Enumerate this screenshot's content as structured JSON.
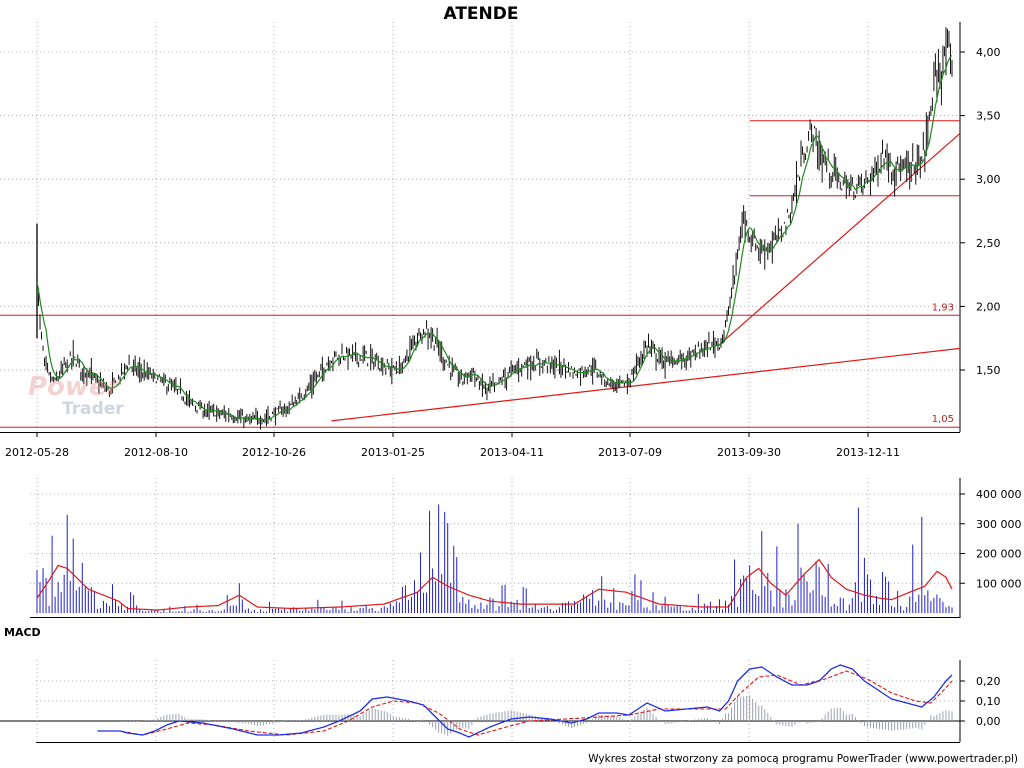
{
  "chart_data": [
    {
      "type": "candlestick",
      "title": "ATENDE",
      "x_tick_labels": [
        "2012-05-28",
        "2012-08-10",
        "2012-10-26",
        "2013-01-25",
        "2013-04-11",
        "2013-07-09",
        "2013-09-30",
        "2013-12-11"
      ],
      "y_tick_labels": [
        "4,00",
        "3,50",
        "3,00",
        "2,50",
        "2,00",
        "1,50"
      ],
      "y_ticks": [
        4.0,
        3.5,
        3.0,
        2.5,
        2.0,
        1.5
      ],
      "ylim": [
        1.0,
        4.1
      ],
      "grid": true,
      "level_labels": [
        "1,93",
        "1,05"
      ],
      "levels": [
        1.93,
        1.05,
        3.46,
        2.87
      ],
      "price_points": [
        [
          0,
          2.25
        ],
        [
          2,
          1.85
        ],
        [
          5,
          1.55
        ],
        [
          8,
          1.45
        ],
        [
          12,
          1.4
        ],
        [
          18,
          1.52
        ],
        [
          24,
          1.6
        ],
        [
          30,
          1.5
        ],
        [
          36,
          1.46
        ],
        [
          42,
          1.38
        ],
        [
          48,
          1.33
        ],
        [
          55,
          1.45
        ],
        [
          60,
          1.55
        ],
        [
          66,
          1.5
        ],
        [
          72,
          1.47
        ],
        [
          78,
          1.44
        ],
        [
          84,
          1.4
        ],
        [
          90,
          1.36
        ],
        [
          96,
          1.3
        ],
        [
          102,
          1.24
        ],
        [
          110,
          1.18
        ],
        [
          120,
          1.16
        ],
        [
          130,
          1.14
        ],
        [
          140,
          1.1
        ],
        [
          150,
          1.12
        ],
        [
          158,
          1.16
        ],
        [
          166,
          1.2
        ],
        [
          174,
          1.28
        ],
        [
          180,
          1.36
        ],
        [
          186,
          1.45
        ],
        [
          190,
          1.52
        ],
        [
          196,
          1.6
        ],
        [
          206,
          1.62
        ],
        [
          216,
          1.6
        ],
        [
          226,
          1.56
        ],
        [
          236,
          1.5
        ],
        [
          242,
          1.52
        ],
        [
          248,
          1.68
        ],
        [
          254,
          1.8
        ],
        [
          258,
          1.82
        ],
        [
          264,
          1.72
        ],
        [
          270,
          1.58
        ],
        [
          276,
          1.48
        ],
        [
          282,
          1.42
        ],
        [
          288,
          1.5
        ],
        [
          292,
          1.4
        ],
        [
          298,
          1.35
        ],
        [
          304,
          1.38
        ],
        [
          310,
          1.45
        ],
        [
          316,
          1.5
        ],
        [
          324,
          1.55
        ],
        [
          334,
          1.56
        ],
        [
          344,
          1.53
        ],
        [
          350,
          1.52
        ],
        [
          356,
          1.48
        ],
        [
          362,
          1.5
        ],
        [
          368,
          1.52
        ],
        [
          376,
          1.42
        ],
        [
          384,
          1.38
        ],
        [
          392,
          1.4
        ],
        [
          398,
          1.55
        ],
        [
          404,
          1.7
        ],
        [
          410,
          1.62
        ],
        [
          416,
          1.56
        ],
        [
          424,
          1.58
        ],
        [
          432,
          1.6
        ],
        [
          440,
          1.66
        ],
        [
          448,
          1.7
        ],
        [
          452,
          1.72
        ],
        [
          456,
          1.82
        ],
        [
          460,
          2.1
        ],
        [
          464,
          2.4
        ],
        [
          468,
          2.7
        ],
        [
          474,
          2.52
        ],
        [
          480,
          2.44
        ],
        [
          486,
          2.48
        ],
        [
          492,
          2.56
        ],
        [
          498,
          2.7
        ],
        [
          502,
          2.9
        ],
        [
          506,
          3.1
        ],
        [
          510,
          3.3
        ],
        [
          514,
          3.38
        ],
        [
          518,
          3.2
        ],
        [
          524,
          3.1
        ],
        [
          532,
          2.98
        ],
        [
          540,
          2.92
        ],
        [
          548,
          2.96
        ],
        [
          556,
          3.08
        ],
        [
          560,
          3.2
        ],
        [
          566,
          3.12
        ],
        [
          574,
          3.06
        ],
        [
          580,
          3.08
        ],
        [
          586,
          3.16
        ],
        [
          590,
          3.4
        ],
        [
          594,
          3.72
        ],
        [
          598,
          3.86
        ],
        [
          602,
          3.98
        ],
        [
          606,
          3.9
        ]
      ],
      "n_sessions": 607
    },
    {
      "type": "bar",
      "series_name": "volume",
      "y_tick_labels": [
        "400 000",
        "300 000",
        "200 000",
        "100 000"
      ],
      "y_ticks": [
        400000,
        300000,
        200000,
        100000
      ],
      "ylim": [
        0,
        470000
      ],
      "volume_points": [
        [
          0,
          300000
        ],
        [
          6,
          320000
        ],
        [
          12,
          230000
        ],
        [
          18,
          370000
        ],
        [
          24,
          250000
        ],
        [
          30,
          320000
        ],
        [
          36,
          200000
        ],
        [
          42,
          120000
        ],
        [
          48,
          100000
        ],
        [
          54,
          90000
        ],
        [
          60,
          80000
        ],
        [
          70,
          30000
        ],
        [
          90,
          20000
        ],
        [
          110,
          30000
        ],
        [
          126,
          60000
        ],
        [
          134,
          100000
        ],
        [
          144,
          30000
        ],
        [
          170,
          50000
        ],
        [
          200,
          40000
        ],
        [
          232,
          60000
        ],
        [
          250,
          110000
        ],
        [
          262,
          390000
        ],
        [
          270,
          340000
        ],
        [
          280,
          150000
        ],
        [
          292,
          120000
        ],
        [
          304,
          90000
        ],
        [
          316,
          100000
        ],
        [
          330,
          70000
        ],
        [
          350,
          90000
        ],
        [
          370,
          160000
        ],
        [
          380,
          70000
        ],
        [
          392,
          150000
        ],
        [
          410,
          60000
        ],
        [
          432,
          40000
        ],
        [
          452,
          120000
        ],
        [
          462,
          180000
        ],
        [
          470,
          320000
        ],
        [
          476,
          290000
        ],
        [
          484,
          260000
        ],
        [
          494,
          200000
        ],
        [
          504,
          300000
        ],
        [
          510,
          460000
        ],
        [
          518,
          300000
        ],
        [
          526,
          120000
        ],
        [
          536,
          90000
        ],
        [
          546,
          420000
        ],
        [
          556,
          170000
        ],
        [
          566,
          90000
        ],
        [
          576,
          50000
        ],
        [
          584,
          410000
        ],
        [
          590,
          150000
        ],
        [
          598,
          120000
        ],
        [
          606,
          40000
        ]
      ],
      "ma_points": [
        [
          0,
          50000
        ],
        [
          8,
          110000
        ],
        [
          14,
          160000
        ],
        [
          20,
          150000
        ],
        [
          26,
          120000
        ],
        [
          34,
          80000
        ],
        [
          44,
          60000
        ],
        [
          54,
          40000
        ],
        [
          60,
          15000
        ],
        [
          80,
          10000
        ],
        [
          100,
          20000
        ],
        [
          120,
          25000
        ],
        [
          134,
          60000
        ],
        [
          146,
          20000
        ],
        [
          170,
          15000
        ],
        [
          200,
          20000
        ],
        [
          230,
          30000
        ],
        [
          252,
          70000
        ],
        [
          262,
          120000
        ],
        [
          272,
          90000
        ],
        [
          286,
          60000
        ],
        [
          300,
          40000
        ],
        [
          320,
          30000
        ],
        [
          340,
          30000
        ],
        [
          356,
          30000
        ],
        [
          372,
          80000
        ],
        [
          390,
          70000
        ],
        [
          412,
          30000
        ],
        [
          440,
          20000
        ],
        [
          458,
          20000
        ],
        [
          470,
          120000
        ],
        [
          478,
          150000
        ],
        [
          486,
          100000
        ],
        [
          496,
          60000
        ],
        [
          508,
          130000
        ],
        [
          518,
          180000
        ],
        [
          526,
          120000
        ],
        [
          536,
          80000
        ],
        [
          548,
          60000
        ],
        [
          558,
          50000
        ],
        [
          566,
          45000
        ],
        [
          578,
          70000
        ],
        [
          588,
          90000
        ],
        [
          596,
          140000
        ],
        [
          602,
          120000
        ],
        [
          606,
          80000
        ]
      ]
    },
    {
      "type": "line",
      "title": "MACD",
      "y_tick_labels": [
        "0,20",
        "0,10",
        "0,00"
      ],
      "y_ticks": [
        0.2,
        0.1,
        0.0
      ],
      "ylim": [
        -0.1,
        0.35
      ],
      "macd_points": [
        [
          40,
          -0.05
        ],
        [
          55,
          -0.05
        ],
        [
          60,
          -0.06
        ],
        [
          70,
          -0.07
        ],
        [
          78,
          -0.05
        ],
        [
          86,
          -0.02
        ],
        [
          94,
          0.0
        ],
        [
          110,
          -0.01
        ],
        [
          130,
          -0.04
        ],
        [
          146,
          -0.07
        ],
        [
          160,
          -0.07
        ],
        [
          175,
          -0.06
        ],
        [
          190,
          -0.03
        ],
        [
          200,
          0.0
        ],
        [
          214,
          0.05
        ],
        [
          222,
          0.11
        ],
        [
          232,
          0.12
        ],
        [
          246,
          0.1
        ],
        [
          256,
          0.08
        ],
        [
          264,
          0.02
        ],
        [
          272,
          -0.04
        ],
        [
          280,
          -0.06
        ],
        [
          286,
          -0.08
        ],
        [
          300,
          -0.03
        ],
        [
          314,
          0.01
        ],
        [
          326,
          0.02
        ],
        [
          340,
          0.01
        ],
        [
          354,
          -0.01
        ],
        [
          364,
          0.01
        ],
        [
          372,
          0.04
        ],
        [
          384,
          0.04
        ],
        [
          392,
          0.03
        ],
        [
          404,
          0.09
        ],
        [
          416,
          0.05
        ],
        [
          430,
          0.06
        ],
        [
          444,
          0.07
        ],
        [
          452,
          0.05
        ],
        [
          458,
          0.1
        ],
        [
          464,
          0.2
        ],
        [
          472,
          0.26
        ],
        [
          480,
          0.27
        ],
        [
          490,
          0.22
        ],
        [
          500,
          0.18
        ],
        [
          510,
          0.18
        ],
        [
          518,
          0.2
        ],
        [
          526,
          0.26
        ],
        [
          532,
          0.28
        ],
        [
          540,
          0.26
        ],
        [
          548,
          0.2
        ],
        [
          556,
          0.16
        ],
        [
          566,
          0.11
        ],
        [
          576,
          0.09
        ],
        [
          586,
          0.07
        ],
        [
          594,
          0.12
        ],
        [
          602,
          0.2
        ],
        [
          606,
          0.23
        ]
      ],
      "signal_points": [
        [
          40,
          -0.05
        ],
        [
          55,
          -0.05
        ],
        [
          70,
          -0.07
        ],
        [
          86,
          -0.04
        ],
        [
          100,
          -0.01
        ],
        [
          118,
          -0.02
        ],
        [
          140,
          -0.05
        ],
        [
          165,
          -0.07
        ],
        [
          190,
          -0.05
        ],
        [
          206,
          0.0
        ],
        [
          222,
          0.07
        ],
        [
          236,
          0.1
        ],
        [
          252,
          0.09
        ],
        [
          266,
          0.04
        ],
        [
          280,
          -0.04
        ],
        [
          292,
          -0.07
        ],
        [
          306,
          -0.04
        ],
        [
          326,
          0.0
        ],
        [
          350,
          0.01
        ],
        [
          372,
          0.02
        ],
        [
          392,
          0.03
        ],
        [
          412,
          0.06
        ],
        [
          440,
          0.06
        ],
        [
          456,
          0.06
        ],
        [
          466,
          0.14
        ],
        [
          478,
          0.22
        ],
        [
          490,
          0.23
        ],
        [
          506,
          0.18
        ],
        [
          522,
          0.21
        ],
        [
          536,
          0.25
        ],
        [
          550,
          0.21
        ],
        [
          566,
          0.14
        ],
        [
          582,
          0.1
        ],
        [
          592,
          0.09
        ],
        [
          600,
          0.15
        ],
        [
          606,
          0.2
        ]
      ]
    }
  ],
  "footer": {
    "credit": "Wykres został stworzony za pomocą programu PowerTrader (www.powertrader.pl)"
  },
  "watermark": {
    "line1": "Power",
    "line2": "Trader"
  },
  "colors": {
    "candle": "#111111",
    "ma_green": "#1f8a1f",
    "trend_red": "#e01818",
    "volume_blue": "#2020c8",
    "volume_ma_red": "#e01818",
    "macd_blue": "#2030e0",
    "signal_red": "#e01818",
    "histogram": "#9aa0b0",
    "grid": "#b0b0b0"
  }
}
